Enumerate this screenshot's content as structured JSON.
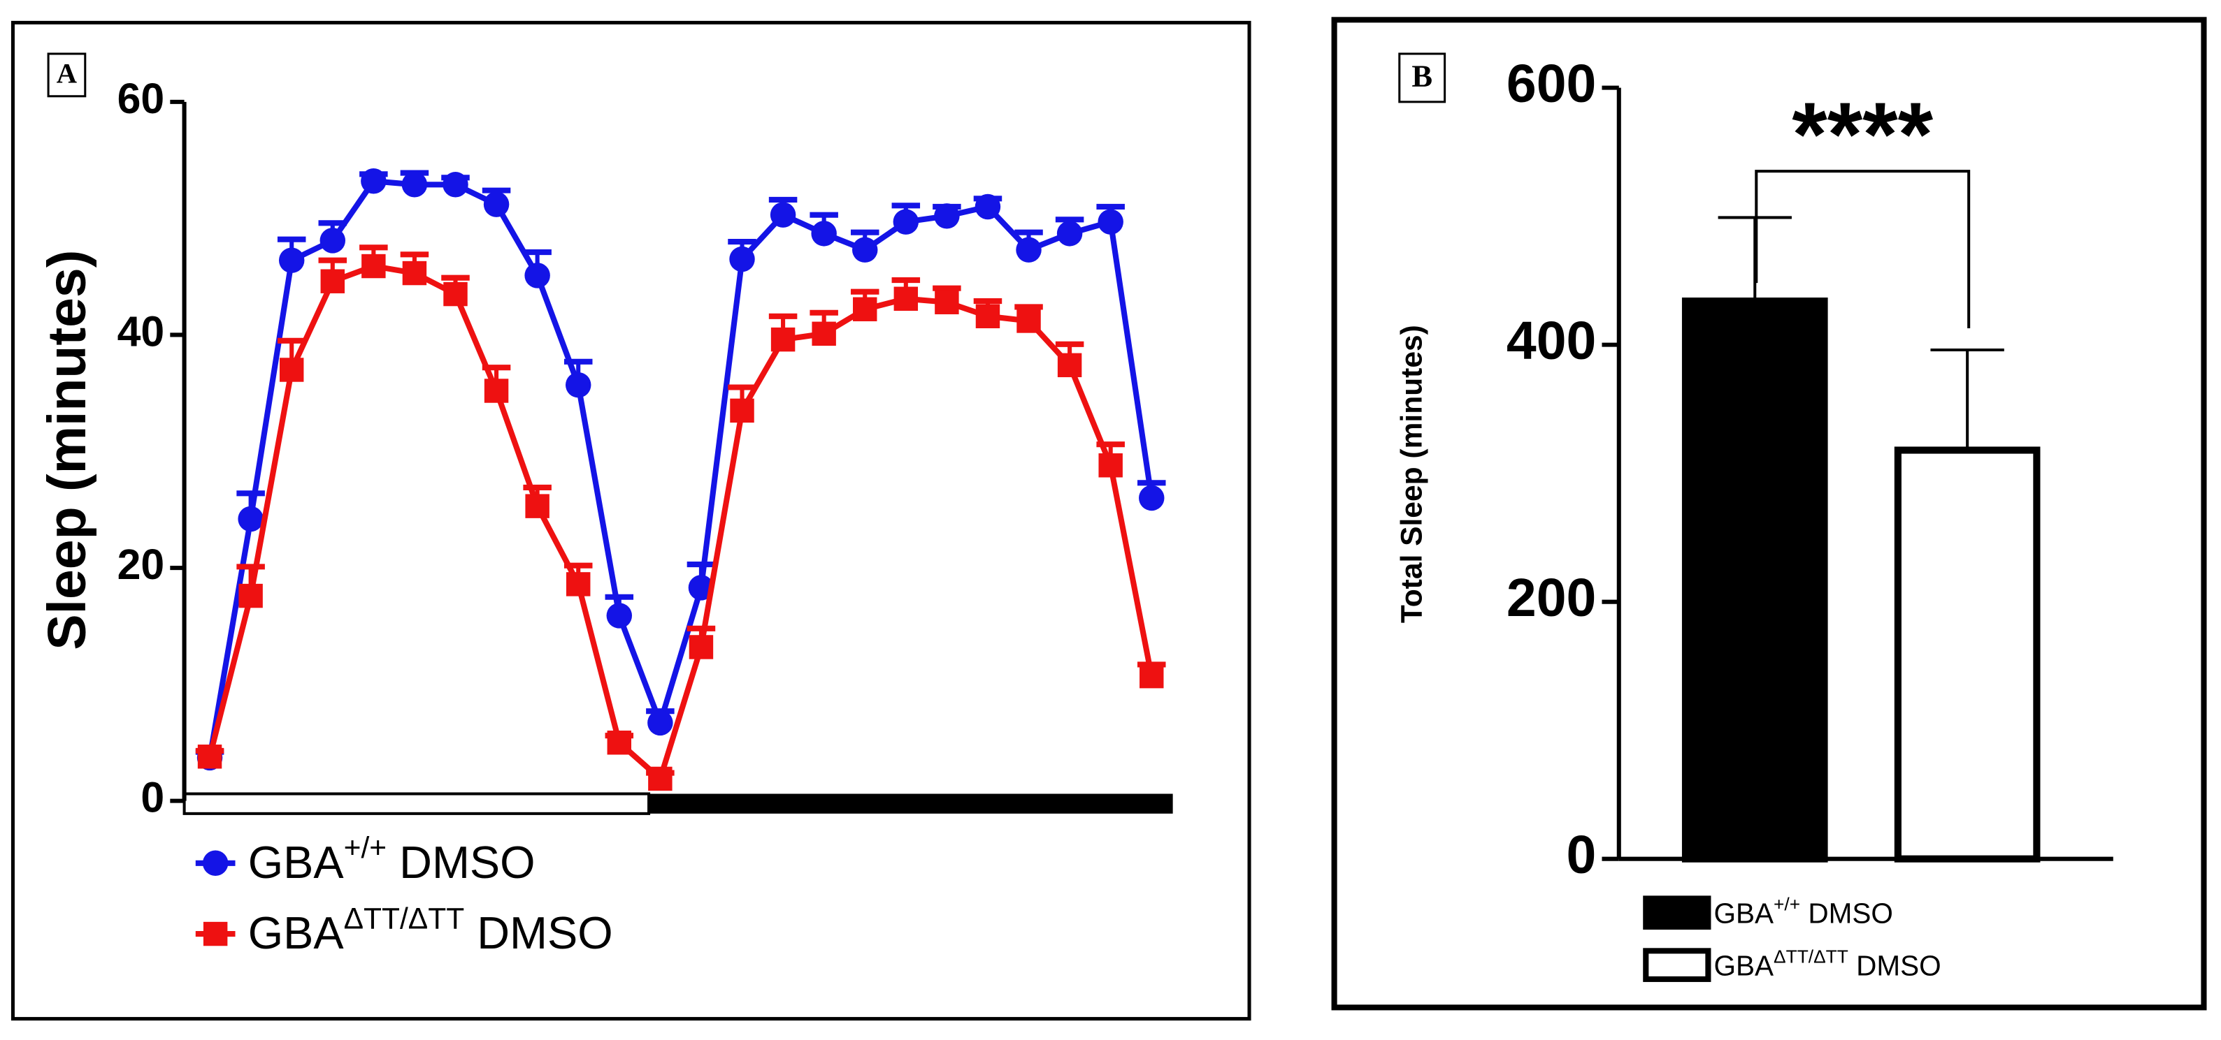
{
  "chart_data": [
    {
      "type": "line",
      "panel": "A",
      "ylabel": "Sleep (minutes)",
      "categories": [
        null,
        null,
        null,
        null,
        null,
        null,
        null,
        null,
        null,
        null,
        null,
        null,
        null,
        null,
        null,
        null,
        null,
        null,
        null,
        null,
        null,
        null,
        null,
        null
      ],
      "ylim": [
        0,
        60
      ],
      "yticks": [
        0,
        20,
        40,
        60
      ],
      "series": [
        {
          "name": "GBA",
          "name_superscript": "+/+",
          "name_suffix": "DMSO",
          "color": "#1414e6",
          "marker": "circle",
          "values": [
            3.7,
            24.2,
            46.4,
            48.1,
            53.2,
            52.9,
            52.9,
            51.2,
            45.1,
            35.7,
            15.9,
            6.7,
            18.3,
            46.5,
            50.3,
            48.7,
            47.3,
            49.7,
            50.2,
            51.0,
            47.3,
            48.7,
            49.7,
            26.0
          ],
          "errors": [
            0.5,
            2.2,
            1.8,
            1.5,
            0.6,
            1.0,
            0.6,
            1.2,
            2.0,
            2.0,
            1.6,
            1.0,
            2.0,
            1.5,
            1.3,
            1.6,
            1.5,
            1.4,
            0.8,
            0.7,
            1.5,
            1.2,
            1.3,
            1.3
          ]
        },
        {
          "name": "GBA",
          "name_superscript": "ΔTT/ΔTT",
          "name_suffix": "DMSO",
          "color": "#ee1111",
          "marker": "square",
          "values": [
            3.8,
            17.6,
            37.0,
            44.6,
            45.9,
            45.3,
            43.5,
            35.2,
            25.3,
            18.6,
            5.0,
            1.9,
            13.2,
            33.5,
            39.6,
            40.1,
            42.2,
            43.1,
            42.8,
            41.6,
            41.2,
            37.4,
            28.8,
            10.7
          ],
          "errors": [
            0.5,
            2.5,
            2.5,
            1.8,
            1.6,
            1.6,
            1.4,
            2.0,
            1.6,
            1.6,
            0.6,
            0.5,
            1.6,
            2.0,
            2.0,
            1.8,
            1.5,
            1.6,
            1.2,
            1.3,
            1.2,
            1.8,
            1.8,
            1.0
          ]
        }
      ]
    },
    {
      "type": "bar",
      "panel": "B",
      "ylabel": "Total Sleep (minutes)",
      "significance": "****",
      "ylim": [
        0,
        600
      ],
      "yticks": [
        0,
        200,
        400,
        600
      ],
      "series": [
        {
          "name": "GBA",
          "name_superscript": "+/+",
          "name_suffix": "DMSO",
          "color": "#000000",
          "value": 434,
          "error": 65
        },
        {
          "name": "GBA",
          "name_superscript": "ΔTT/ΔTT",
          "name_suffix": "DMSO",
          "color": "#ffffff",
          "value": 318,
          "error": 78
        }
      ]
    }
  ]
}
